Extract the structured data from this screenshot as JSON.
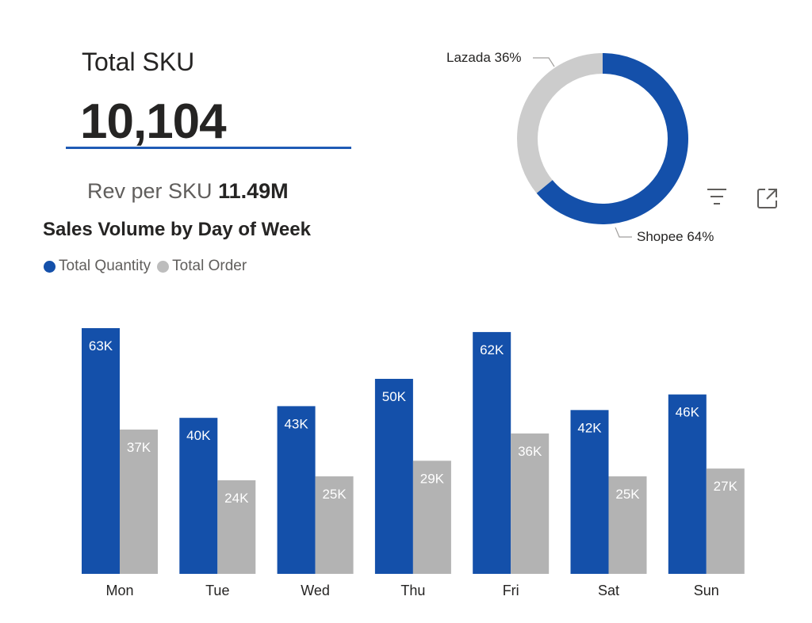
{
  "kpi": {
    "title": "Total SKU",
    "value": "10,104",
    "rev_label": "Rev per SKU",
    "rev_value": "11.49M"
  },
  "donut": {
    "segments": [
      {
        "name": "Shopee",
        "percent": 64,
        "label": "Shopee 64%",
        "color": "#1450AA"
      },
      {
        "name": "Lazada",
        "percent": 36,
        "label": "Lazada 36%",
        "color": "#CCCCCC"
      }
    ]
  },
  "visual_header": {
    "filter_icon": "filter-icon",
    "focus_icon": "focus-mode-icon"
  },
  "chart_data": {
    "type": "bar",
    "title": "Sales Volume by Day of Week",
    "categories": [
      "Mon",
      "Tue",
      "Wed",
      "Thu",
      "Fri",
      "Sat",
      "Sun"
    ],
    "series": [
      {
        "name": "Total Quantity",
        "color": "#1450AA",
        "values": [
          63000,
          40000,
          43000,
          50000,
          62000,
          42000,
          46000
        ],
        "labels": [
          "63K",
          "40K",
          "43K",
          "50K",
          "62K",
          "42K",
          "46K"
        ]
      },
      {
        "name": "Total Order",
        "color": "#B3B3B3",
        "values": [
          37000,
          24000,
          25000,
          29000,
          36000,
          25000,
          27000
        ],
        "labels": [
          "37K",
          "24K",
          "25K",
          "29K",
          "36K",
          "25K",
          "27K"
        ]
      }
    ],
    "xlabel": "",
    "ylabel": "",
    "ylim": [
      0,
      63000
    ],
    "legend_position": "top-left",
    "grid": false
  }
}
